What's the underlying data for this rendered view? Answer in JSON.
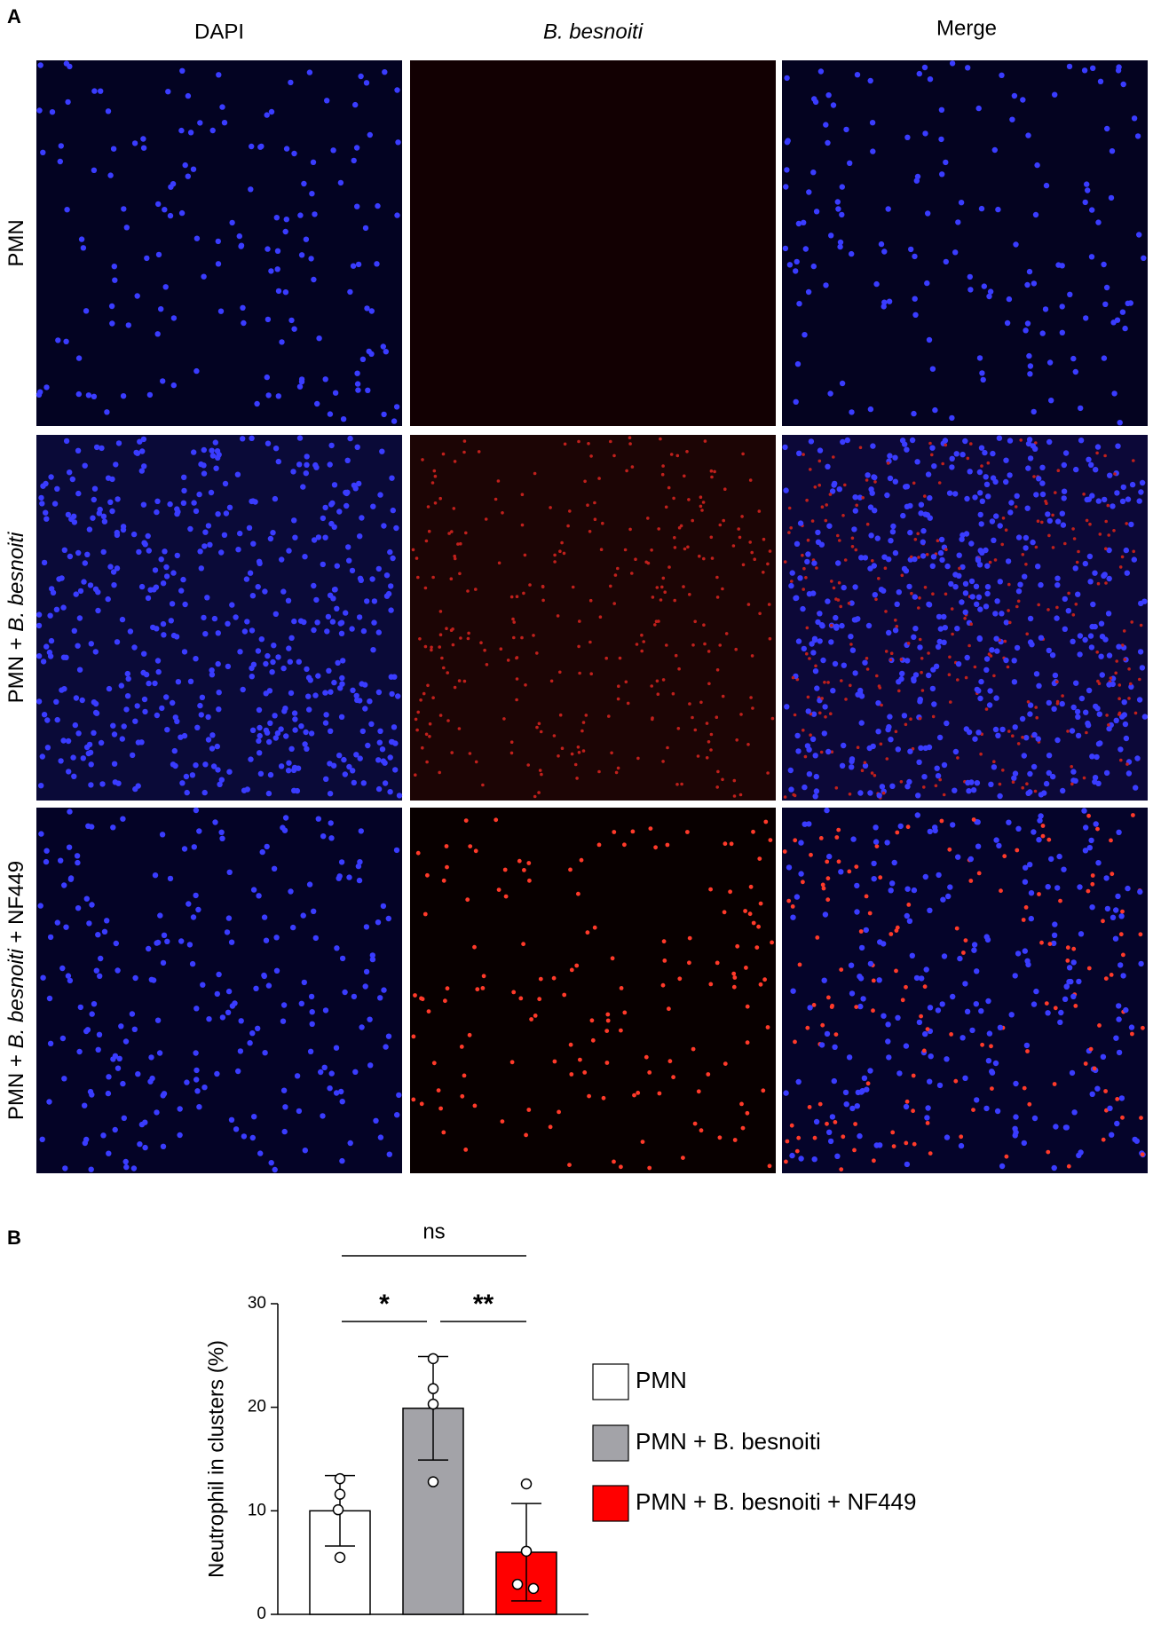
{
  "panel_a": {
    "label": "A",
    "columns": [
      "DAPI",
      "B. besnoiti",
      "Merge"
    ],
    "rows": [
      [
        "PMN"
      ],
      [
        "PMN + ",
        "B. besnoiti"
      ],
      [
        "PMN + ",
        "B. besnoiti",
        " + NF449"
      ]
    ]
  },
  "chart_data": {
    "type": "bar",
    "panel_label": "B",
    "y_label": "Neutrophil in clusters (%)",
    "categories": [
      "PMN",
      "PMN + B. besnoiti",
      "PMN + B. besnoiti + NF449"
    ],
    "values": [
      10,
      19.9,
      6
    ],
    "errors": [
      3.4,
      5,
      4.7
    ],
    "points": [
      [
        13.1,
        11.6,
        10.1,
        5.5
      ],
      [
        24.7,
        21.8,
        20.3,
        12.8
      ],
      [
        12.6,
        6.1,
        2.9,
        2.5
      ]
    ],
    "colors": [
      "#ffffff",
      "#a3a3a8",
      "#ff0000"
    ],
    "ylim": [
      0,
      30
    ],
    "yticks": [
      0,
      10,
      20,
      30
    ],
    "annotations": [
      "ns",
      "*",
      "**"
    ]
  }
}
